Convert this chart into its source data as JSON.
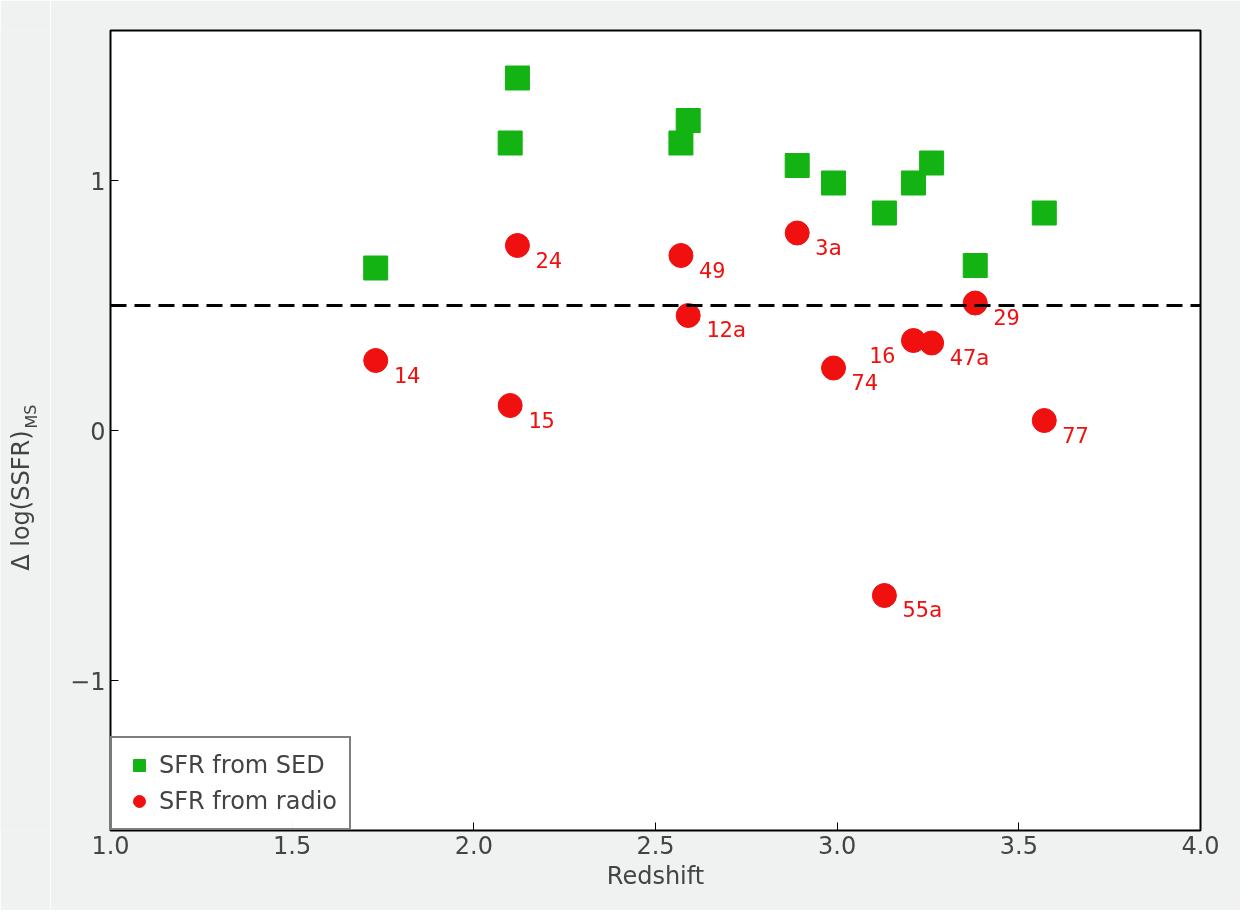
{
  "chart_data": {
    "type": "scatter",
    "xlabel": "Redshift",
    "ylabel": "Δ log(SSFR)$_{MS}$",
    "xlim": [
      1.0,
      4.0
    ],
    "ylim": [
      -1.6,
      1.6
    ],
    "xticks": [
      {
        "value": 1.0,
        "label": "1.0"
      },
      {
        "value": 1.5,
        "label": "1.5"
      },
      {
        "value": 2.0,
        "label": "2.0"
      },
      {
        "value": 2.5,
        "label": "2.5"
      },
      {
        "value": 3.0,
        "label": "3.0"
      },
      {
        "value": 3.5,
        "label": "3.5"
      },
      {
        "value": 4.0,
        "label": "4.0"
      }
    ],
    "yticks": [
      {
        "value": -1,
        "label": "−1"
      },
      0,
      1
    ],
    "grid": false,
    "legend": "bottom left",
    "series": [
      {
        "name": "SFR from SED",
        "color": "#12b312",
        "marker": "square",
        "x": [
          1.73,
          2.1,
          2.12,
          2.57,
          2.59,
          2.89,
          2.99,
          3.13,
          3.21,
          3.26,
          3.38,
          3.57
        ],
        "values": [
          0.65,
          1.15,
          1.41,
          1.15,
          1.24,
          1.06,
          0.99,
          0.87,
          0.99,
          1.07,
          0.66,
          0.87
        ]
      },
      {
        "name": "SFR from radio",
        "color": "#f01010",
        "marker": "circle",
        "x": [
          1.73,
          2.1,
          2.12,
          2.57,
          2.59,
          2.89,
          2.99,
          3.13,
          3.21,
          3.26,
          3.38,
          3.57
        ],
        "values": [
          0.28,
          0.1,
          0.74,
          0.7,
          0.46,
          0.79,
          0.25,
          -0.66,
          0.36,
          0.35,
          0.51,
          0.04
        ]
      }
    ],
    "ref_lines": [
      {
        "axis": "y",
        "value": 0.5,
        "color": "#000000",
        "line_style": "dashed"
      }
    ],
    "annotations": [
      {
        "text": "14",
        "x": 1.73,
        "y": 0.28
      },
      {
        "text": "15",
        "x": 2.1,
        "y": 0.1
      },
      {
        "text": "24",
        "x": 2.12,
        "y": 0.74
      },
      {
        "text": "49",
        "x": 2.57,
        "y": 0.7
      },
      {
        "text": "12a",
        "x": 2.59,
        "y": 0.46
      },
      {
        "text": "3a",
        "x": 2.89,
        "y": 0.79
      },
      {
        "text": "74",
        "x": 2.99,
        "y": 0.25
      },
      {
        "text": "55a",
        "x": 3.13,
        "y": -0.66
      },
      {
        "text": "16",
        "x": 3.21,
        "y": 0.36
      },
      {
        "text": "47a",
        "x": 3.26,
        "y": 0.35
      },
      {
        "text": "29",
        "x": 3.38,
        "y": 0.51
      },
      {
        "text": "77",
        "x": 3.57,
        "y": 0.04
      }
    ]
  }
}
